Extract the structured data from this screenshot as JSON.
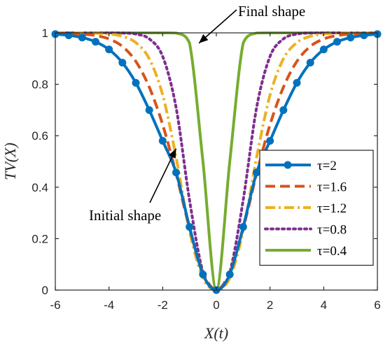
{
  "chart_data": {
    "type": "line",
    "xlabel": "X(t)",
    "ylabel": "TV(X)",
    "xlim": [
      -6,
      6
    ],
    "ylim": [
      0,
      1
    ],
    "xticks": [
      "-6",
      "-4",
      "-2",
      "0",
      "2",
      "4",
      "6"
    ],
    "yticks": [
      "0",
      "0.2",
      "0.4",
      "0.6",
      "0.8",
      "1"
    ],
    "grid": false,
    "legend_position": "center-right",
    "x": [
      -6,
      -5.5,
      -5,
      -4.5,
      -4,
      -3.5,
      -3,
      -2.5,
      -2,
      -1.5,
      -1,
      -0.5,
      0,
      0.5,
      1,
      1.5,
      2,
      2.5,
      3,
      3.5,
      4,
      4.5,
      5,
      5.5,
      6
    ],
    "series": [
      {
        "name": "τ=2",
        "color": "#0072BD",
        "dash": "solid",
        "markers": true,
        "values": [
          0.9951,
          0.9905,
          0.9818,
          0.9653,
          0.9354,
          0.8843,
          0.8058,
          0.6997,
          0.5801,
          0.4571,
          0.2456,
          0.0608,
          0.0,
          0.0608,
          0.2456,
          0.4571,
          0.5801,
          0.6997,
          0.8058,
          0.8843,
          0.9354,
          0.9653,
          0.9818,
          0.9905,
          0.9951
        ]
      },
      {
        "name": "τ=1.6",
        "color": "#D95319",
        "dash": "dashed",
        "markers": false,
        "values": [
          0.9991,
          0.998,
          0.9954,
          0.9896,
          0.9763,
          0.9474,
          0.8891,
          0.7891,
          0.6431,
          0.4529,
          0.24,
          0.07,
          0.0,
          0.07,
          0.24,
          0.4529,
          0.6431,
          0.7891,
          0.8891,
          0.9474,
          0.9763,
          0.9896,
          0.9954,
          0.998,
          0.9991
        ]
      },
      {
        "name": "τ=1.2",
        "color": "#EDB120",
        "dash": "dashdot",
        "markers": false,
        "values": [
          0.9999,
          0.9998,
          0.9995,
          0.9985,
          0.9955,
          0.9867,
          0.9621,
          0.8996,
          0.7584,
          0.5164,
          0.2296,
          0.0472,
          0.0,
          0.0472,
          0.2296,
          0.5164,
          0.7584,
          0.8996,
          0.9621,
          0.9867,
          0.9955,
          0.9985,
          0.9995,
          0.9998,
          0.9999
        ]
      },
      {
        "name": "τ=0.8",
        "color": "#7E2F8E",
        "dash": "dotted",
        "markers": false,
        "values": [
          1,
          1,
          1,
          1,
          0.9999,
          0.9994,
          0.9954,
          0.9767,
          0.9085,
          0.7097,
          0.35,
          0.07,
          0.0,
          0.07,
          0.35,
          0.7097,
          0.9085,
          0.9767,
          0.9954,
          0.9994,
          0.9999,
          1,
          1,
          1,
          1
        ]
      },
      {
        "name": "τ=0.4",
        "color": "#77AC30",
        "dash": "solid",
        "markers": false,
        "values": [
          1,
          1,
          1,
          1,
          1,
          1,
          1,
          1,
          1,
          0.9994,
          0.96,
          0.5,
          0.0,
          0.5,
          0.96,
          0.9994,
          1,
          1,
          1,
          1,
          1,
          1,
          1,
          1,
          1
        ]
      }
    ],
    "annotations": [
      {
        "text": "Final shape",
        "arrow_to": [
          -0.65,
          0.96
        ]
      },
      {
        "text": "Initial shape",
        "arrow_to": [
          -1.5,
          0.55
        ]
      }
    ]
  }
}
